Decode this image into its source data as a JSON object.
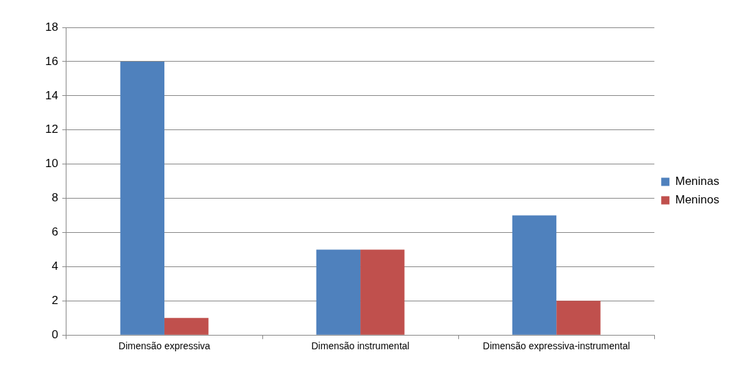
{
  "chart_data": {
    "type": "bar",
    "categories": [
      "Dimensão expressiva",
      "Dimensão instrumental",
      "Dimensão expressiva-instrumental"
    ],
    "series": [
      {
        "name": "Meninas",
        "color": "#4f81bd",
        "values": [
          16,
          5,
          7
        ]
      },
      {
        "name": "Meninos",
        "color": "#c0504d",
        "values": [
          1,
          5,
          2
        ]
      }
    ],
    "ylim": [
      0,
      18
    ],
    "yticks": [
      0,
      2,
      4,
      6,
      8,
      10,
      12,
      14,
      16,
      18
    ],
    "grid": "y",
    "legend": "right"
  }
}
